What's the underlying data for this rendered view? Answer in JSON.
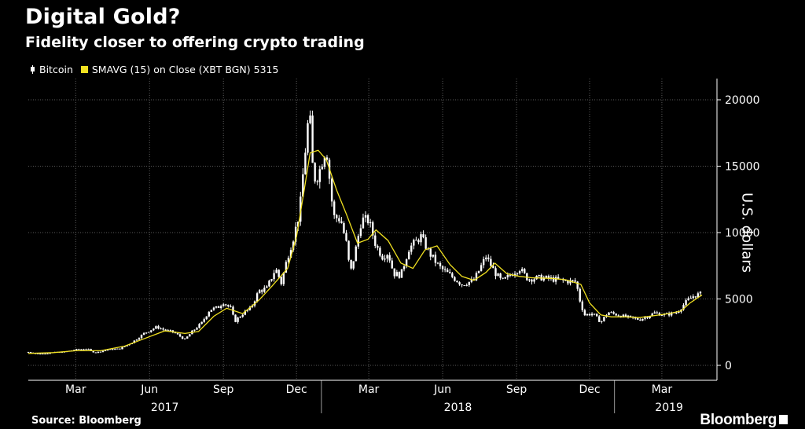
{
  "chart_data": {
    "type": "line",
    "title": "Digital Gold?",
    "subtitle": "Fidelity closer to offering crypto trading",
    "ylabel": "U.S. dollars",
    "ylim": [
      0,
      21500
    ],
    "yticks": [
      0,
      5000,
      10000,
      15000,
      20000
    ],
    "x_range": [
      "2017-01-01",
      "2019-04-20"
    ],
    "x_ticks": [
      {
        "date": "2017-03-01",
        "label": "Mar"
      },
      {
        "date": "2017-06-01",
        "label": "Jun"
      },
      {
        "date": "2017-09-01",
        "label": "Sep"
      },
      {
        "date": "2017-12-01",
        "label": "Dec"
      },
      {
        "date": "2018-03-01",
        "label": "Mar"
      },
      {
        "date": "2018-06-01",
        "label": "Jun"
      },
      {
        "date": "2018-09-01",
        "label": "Sep"
      },
      {
        "date": "2018-12-01",
        "label": "Dec"
      },
      {
        "date": "2019-03-01",
        "label": "Mar"
      }
    ],
    "year_labels": [
      {
        "date": "2017-06-20",
        "label": "2017"
      },
      {
        "date": "2018-06-20",
        "label": "2018"
      },
      {
        "date": "2019-03-10",
        "label": "2019"
      }
    ],
    "year_separators": [
      "2018-01-01",
      "2019-01-01"
    ],
    "grid": true,
    "legend_position": "top-left",
    "series": [
      {
        "name": "Bitcoin",
        "kind": "candlestick",
        "color": "#ffffff",
        "points": [
          [
            "2017-01-01",
            1000
          ],
          [
            "2017-01-15",
            850
          ],
          [
            "2017-02-01",
            970
          ],
          [
            "2017-02-15",
            1010
          ],
          [
            "2017-03-01",
            1190
          ],
          [
            "2017-03-15",
            1250
          ],
          [
            "2017-03-25",
            950
          ],
          [
            "2017-04-10",
            1180
          ],
          [
            "2017-04-25",
            1250
          ],
          [
            "2017-05-10",
            1720
          ],
          [
            "2017-05-25",
            2400
          ],
          [
            "2017-06-10",
            2900
          ],
          [
            "2017-06-20",
            2650
          ],
          [
            "2017-07-01",
            2500
          ],
          [
            "2017-07-15",
            1950
          ],
          [
            "2017-07-25",
            2600
          ],
          [
            "2017-08-05",
            3200
          ],
          [
            "2017-08-15",
            4200
          ],
          [
            "2017-08-25",
            4350
          ],
          [
            "2017-09-01",
            4750
          ],
          [
            "2017-09-10",
            4300
          ],
          [
            "2017-09-15",
            3300
          ],
          [
            "2017-09-25",
            3900
          ],
          [
            "2017-10-05",
            4300
          ],
          [
            "2017-10-15",
            5600
          ],
          [
            "2017-10-25",
            5800
          ],
          [
            "2017-11-05",
            7300
          ],
          [
            "2017-11-12",
            6200
          ],
          [
            "2017-11-20",
            8200
          ],
          [
            "2017-11-28",
            9800
          ],
          [
            "2017-12-05",
            11600
          ],
          [
            "2017-12-10",
            15000
          ],
          [
            "2017-12-17",
            19300
          ],
          [
            "2017-12-22",
            14000
          ],
          [
            "2017-12-28",
            14300
          ],
          [
            "2018-01-07",
            16500
          ],
          [
            "2018-01-16",
            11200
          ],
          [
            "2018-01-25",
            11000
          ],
          [
            "2018-02-01",
            9200
          ],
          [
            "2018-02-06",
            6900
          ],
          [
            "2018-02-12",
            8500
          ],
          [
            "2018-02-20",
            11000
          ],
          [
            "2018-03-01",
            10900
          ],
          [
            "2018-03-10",
            9000
          ],
          [
            "2018-03-18",
            8200
          ],
          [
            "2018-03-25",
            8500
          ],
          [
            "2018-04-01",
            6900
          ],
          [
            "2018-04-10",
            6800
          ],
          [
            "2018-04-20",
            8800
          ],
          [
            "2018-05-05",
            9700
          ],
          [
            "2018-05-15",
            8500
          ],
          [
            "2018-05-28",
            7400
          ],
          [
            "2018-06-10",
            6800
          ],
          [
            "2018-06-25",
            6100
          ],
          [
            "2018-07-10",
            6400
          ],
          [
            "2018-07-25",
            8200
          ],
          [
            "2018-08-05",
            7000
          ],
          [
            "2018-08-14",
            6300
          ],
          [
            "2018-08-28",
            7000
          ],
          [
            "2018-09-05",
            7300
          ],
          [
            "2018-09-15",
            6500
          ],
          [
            "2018-10-01",
            6600
          ],
          [
            "2018-10-15",
            6500
          ],
          [
            "2018-11-01",
            6350
          ],
          [
            "2018-11-14",
            6300
          ],
          [
            "2018-11-20",
            4600
          ],
          [
            "2018-11-25",
            3800
          ],
          [
            "2018-12-05",
            3900
          ],
          [
            "2018-12-15",
            3250
          ],
          [
            "2018-12-24",
            4000
          ],
          [
            "2019-01-05",
            3800
          ],
          [
            "2019-01-15",
            3650
          ],
          [
            "2019-02-01",
            3450
          ],
          [
            "2019-02-10",
            3650
          ],
          [
            "2019-02-20",
            3950
          ],
          [
            "2019-03-05",
            3800
          ],
          [
            "2019-03-20",
            4000
          ],
          [
            "2019-04-02",
            4900
          ],
          [
            "2019-04-10",
            5250
          ],
          [
            "2019-04-20",
            5400
          ]
        ]
      },
      {
        "name": "SMAVG (15)  on Close (XBT BGN) 5315",
        "kind": "line",
        "color": "#f0e020",
        "points": [
          [
            "2017-01-01",
            900
          ],
          [
            "2017-02-01",
            960
          ],
          [
            "2017-03-01",
            1100
          ],
          [
            "2017-04-01",
            1100
          ],
          [
            "2017-05-01",
            1450
          ],
          [
            "2017-05-25",
            2000
          ],
          [
            "2017-06-20",
            2600
          ],
          [
            "2017-07-15",
            2400
          ],
          [
            "2017-08-01",
            2550
          ],
          [
            "2017-08-20",
            3700
          ],
          [
            "2017-09-05",
            4300
          ],
          [
            "2017-09-25",
            3900
          ],
          [
            "2017-10-15",
            4900
          ],
          [
            "2017-11-01",
            6000
          ],
          [
            "2017-11-20",
            7300
          ],
          [
            "2017-12-01",
            9700
          ],
          [
            "2017-12-10",
            13000
          ],
          [
            "2017-12-18",
            16000
          ],
          [
            "2017-12-28",
            16200
          ],
          [
            "2018-01-07",
            15500
          ],
          [
            "2018-01-20",
            13200
          ],
          [
            "2018-02-01",
            11400
          ],
          [
            "2018-02-15",
            9200
          ],
          [
            "2018-02-28",
            9500
          ],
          [
            "2018-03-10",
            10200
          ],
          [
            "2018-03-25",
            9400
          ],
          [
            "2018-04-10",
            7700
          ],
          [
            "2018-04-25",
            7300
          ],
          [
            "2018-05-10",
            8700
          ],
          [
            "2018-05-25",
            9000
          ],
          [
            "2018-06-10",
            7600
          ],
          [
            "2018-06-25",
            6700
          ],
          [
            "2018-07-10",
            6400
          ],
          [
            "2018-07-25",
            7000
          ],
          [
            "2018-08-05",
            7700
          ],
          [
            "2018-08-20",
            6900
          ],
          [
            "2018-09-05",
            6700
          ],
          [
            "2018-09-20",
            6600
          ],
          [
            "2018-10-15",
            6550
          ],
          [
            "2018-11-01",
            6450
          ],
          [
            "2018-11-20",
            6100
          ],
          [
            "2018-12-01",
            4700
          ],
          [
            "2018-12-15",
            3800
          ],
          [
            "2018-12-28",
            3650
          ],
          [
            "2019-01-15",
            3650
          ],
          [
            "2019-02-01",
            3600
          ],
          [
            "2019-02-20",
            3750
          ],
          [
            "2019-03-10",
            3900
          ],
          [
            "2019-03-25",
            4100
          ],
          [
            "2019-04-05",
            4700
          ],
          [
            "2019-04-20",
            5300
          ]
        ]
      }
    ]
  },
  "legend": {
    "bitcoin_label": "Bitcoin",
    "sma_label": "SMAVG (15)  on Close (XBT BGN) 5315"
  },
  "footer": {
    "source": "Source: Bloomberg",
    "brand": "Bloomberg"
  }
}
